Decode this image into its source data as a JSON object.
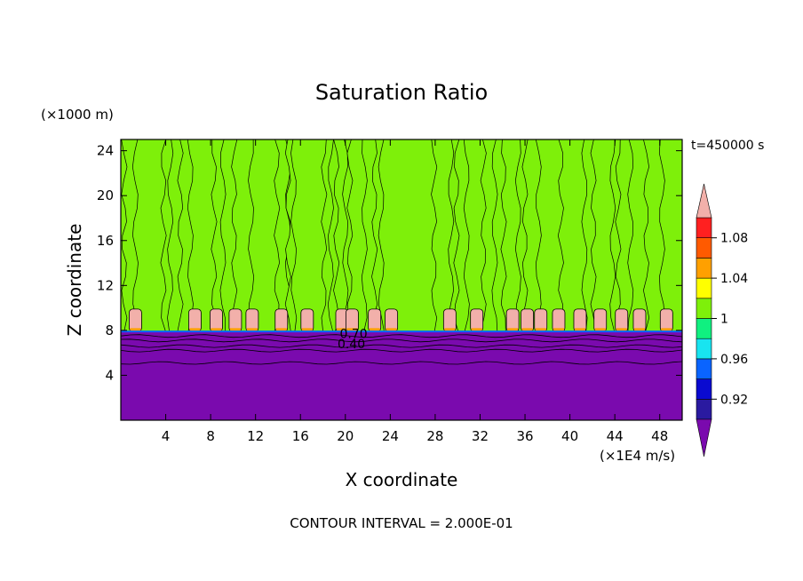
{
  "chart_data": {
    "type": "heatmap",
    "title": "Saturation Ratio",
    "xlabel": "X coordinate",
    "ylabel": "Z coordinate",
    "x_unit": "(×1E4 m/s)",
    "y_unit": "(×1000 m)",
    "time_label": "t=450000 s",
    "footer": "CONTOUR INTERVAL = 2.000E-01",
    "xlim": [
      0,
      50
    ],
    "ylim": [
      0,
      25
    ],
    "x_ticks": [
      4,
      8,
      12,
      16,
      20,
      24,
      28,
      32,
      36,
      40,
      44,
      48
    ],
    "y_ticks": [
      4,
      8,
      12,
      16,
      20,
      24
    ],
    "contour_labels": [
      "0.70",
      "0.40"
    ],
    "colorbar": {
      "levels": [
        0.9,
        0.92,
        0.94,
        0.96,
        0.98,
        1.0,
        1.02,
        1.04,
        1.06,
        1.08,
        1.1
      ],
      "tick_labels": [
        "0.92",
        "0.96",
        "1",
        "1.04",
        "1.08"
      ],
      "tick_values": [
        0.92,
        0.96,
        1.0,
        1.04,
        1.08
      ],
      "colors": [
        "#7a0aae",
        "#2a1aa0",
        "#0a0ad0",
        "#0a64ff",
        "#18e4f0",
        "#10f080",
        "#7ef00a",
        "#ffff00",
        "#ffa000",
        "#ff5a00",
        "#ff2020",
        "#f2b0aa"
      ]
    },
    "fields": {
      "dry_layer_value": 0.4,
      "near_saturation_value": 1.0,
      "column_value": 1.01,
      "cloud_top_value": 1.1,
      "boundary_height": 7.9
    },
    "columns": [
      {
        "x0": 0.3,
        "x1": 1.3
      },
      {
        "x0": 3.8,
        "x1": 4.4
      },
      {
        "x0": 5.3,
        "x1": 6.2
      },
      {
        "x0": 8.3,
        "x1": 9.1
      },
      {
        "x0": 10.1,
        "x1": 11.6
      },
      {
        "x0": 13.9,
        "x1": 14.9
      },
      {
        "x0": 14.9,
        "x1": 15.4
      },
      {
        "x0": 18.1,
        "x1": 18.7
      },
      {
        "x0": 19.2,
        "x1": 20.0
      },
      {
        "x0": 20.4,
        "x1": 21.7
      },
      {
        "x0": 22.6,
        "x1": 23.2
      },
      {
        "x0": 27.9,
        "x1": 29.4
      },
      {
        "x0": 29.9,
        "x1": 30.8
      },
      {
        "x0": 32.3,
        "x1": 33.3
      },
      {
        "x0": 34.1,
        "x1": 35.4
      },
      {
        "x0": 36.0,
        "x1": 37.2
      },
      {
        "x0": 39.2,
        "x1": 41.3
      },
      {
        "x0": 42.1,
        "x1": 43.8
      },
      {
        "x0": 44.3,
        "x1": 45.4
      },
      {
        "x0": 46.8,
        "x1": 48.2
      }
    ],
    "cloud_tops": [
      1.3,
      6.6,
      8.5,
      10.2,
      11.7,
      14.3,
      16.6,
      19.7,
      20.6,
      22.6,
      24.1,
      29.3,
      31.7,
      34.9,
      36.2,
      37.4,
      39.0,
      40.9,
      42.7,
      44.6,
      46.2,
      48.6
    ]
  }
}
